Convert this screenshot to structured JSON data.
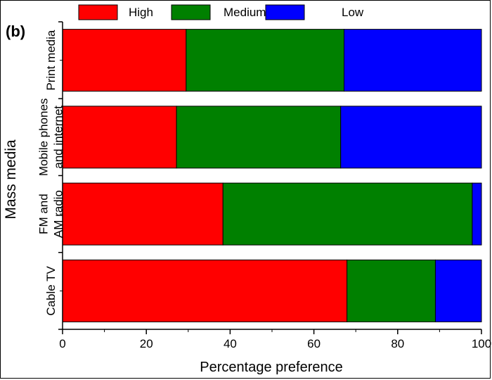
{
  "chart_data": {
    "type": "bar",
    "orientation": "horizontal",
    "stacked": true,
    "panel_label": "(b)",
    "categories": [
      "Print media",
      "Mobile phones and internet",
      "FM and AM radio",
      "Cable TV"
    ],
    "category_labels": [
      [
        "Print media"
      ],
      [
        "Mobile phones",
        "and internet"
      ],
      [
        "FM and",
        "AM radio"
      ],
      [
        "Cable TV"
      ]
    ],
    "series": [
      {
        "name": "High",
        "color": "#ff0000",
        "values": [
          29.5,
          27.2,
          38.3,
          67.9
        ]
      },
      {
        "name": "Medium",
        "color": "#008000",
        "values": [
          37.7,
          39.2,
          59.5,
          21.1
        ]
      },
      {
        "name": "Low",
        "color": "#0000ff",
        "values": [
          32.8,
          33.6,
          2.2,
          11.0
        ]
      }
    ],
    "xlabel": "Percentage preference",
    "ylabel": "Mass media",
    "xlim": [
      0,
      100
    ],
    "xticks": [
      0,
      20,
      40,
      60,
      80,
      100
    ],
    "legend_position": "top",
    "grid": false
  }
}
